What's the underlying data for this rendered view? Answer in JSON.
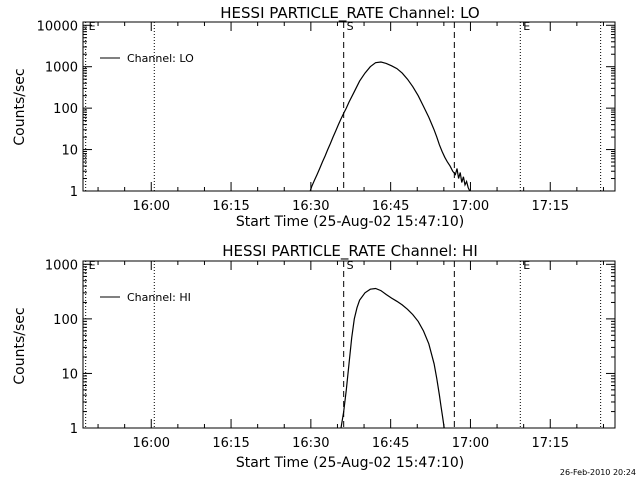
{
  "footer": {
    "timestamp": "26-Feb-2010 20:24"
  },
  "chart_data": [
    {
      "type": "line",
      "title": "HESSI PARTICLE_RATE Channel: LO",
      "xlabel": "Start Time (25-Aug-02 15:47:10)",
      "ylabel": "Counts/sec",
      "y_scale": "log",
      "x_units": "minutes after 15:47:10",
      "xlim": [
        0,
        100
      ],
      "ylim": [
        1,
        12000
      ],
      "x_ticks": [
        {
          "x": 12.83,
          "label": "16:00"
        },
        {
          "x": 27.83,
          "label": "16:15"
        },
        {
          "x": 42.83,
          "label": "16:30"
        },
        {
          "x": 57.83,
          "label": "16:45"
        },
        {
          "x": 72.83,
          "label": "17:00"
        },
        {
          "x": 87.83,
          "label": "17:15"
        }
      ],
      "y_ticks": [
        {
          "y": 1,
          "label": "1"
        },
        {
          "y": 10,
          "label": "10"
        },
        {
          "y": 100,
          "label": "100"
        },
        {
          "y": 1000,
          "label": "1000"
        },
        {
          "y": 10000,
          "label": "10000"
        }
      ],
      "legend": {
        "placement": "top-left",
        "entries": [
          "Channel: LO"
        ]
      },
      "markers": [
        {
          "x": 0.5,
          "style": "dotted",
          "label": "E"
        },
        {
          "x": 13.4,
          "style": "dotted",
          "label": ""
        },
        {
          "x": 49.0,
          "style": "dashed",
          "label": "S"
        },
        {
          "x": 69.8,
          "style": "dashed",
          "label": ""
        },
        {
          "x": 82.2,
          "style": "dotted",
          "label": "E"
        },
        {
          "x": 97.3,
          "style": "dotted",
          "label": ""
        }
      ],
      "series": [
        {
          "name": "Channel: LO",
          "x": [
            42.7,
            43.0,
            43.5,
            44.0,
            44.5,
            45.0,
            45.5,
            46.0,
            46.5,
            47.0,
            47.5,
            48.0,
            48.5,
            49.0,
            49.5,
            50.0,
            51.0,
            52.0,
            53.0,
            54.0,
            55.0,
            56.0,
            57.0,
            58.0,
            59.0,
            60.0,
            61.0,
            62.0,
            63.0,
            64.0,
            65.0,
            66.0,
            66.5,
            67.0,
            67.5,
            68.0,
            68.5,
            69.0,
            69.5,
            70.0,
            70.3,
            70.6,
            70.9,
            71.2,
            71.5,
            71.8,
            72.1,
            72.4,
            72.7
          ],
          "values": [
            1.0,
            1.3,
            1.8,
            2.5,
            3.5,
            5.0,
            7.0,
            10.0,
            14.0,
            20.0,
            28.0,
            40.0,
            55.0,
            75.0,
            100.0,
            140.0,
            250.0,
            450.0,
            700.0,
            1000.0,
            1250.0,
            1300.0,
            1200.0,
            1050.0,
            900.0,
            700.0,
            500.0,
            330.0,
            200.0,
            110.0,
            60.0,
            30.0,
            20.0,
            13.0,
            9.0,
            6.5,
            5.0,
            4.0,
            3.0,
            2.5,
            3.5,
            2.0,
            2.8,
            1.6,
            2.2,
            1.4,
            1.7,
            1.2,
            1.0
          ]
        }
      ]
    },
    {
      "type": "line",
      "title": "HESSI PARTICLE_RATE Channel: HI",
      "xlabel": "Start Time (25-Aug-02 15:47:10)",
      "ylabel": "Counts/sec",
      "y_scale": "log",
      "x_units": "minutes after 15:47:10",
      "xlim": [
        0,
        100
      ],
      "ylim": [
        1,
        1150
      ],
      "x_ticks": [
        {
          "x": 12.83,
          "label": "16:00"
        },
        {
          "x": 27.83,
          "label": "16:15"
        },
        {
          "x": 42.83,
          "label": "16:30"
        },
        {
          "x": 57.83,
          "label": "16:45"
        },
        {
          "x": 72.83,
          "label": "17:00"
        },
        {
          "x": 87.83,
          "label": "17:15"
        }
      ],
      "y_ticks": [
        {
          "y": 1,
          "label": "1"
        },
        {
          "y": 10,
          "label": "10"
        },
        {
          "y": 100,
          "label": "100"
        },
        {
          "y": 1000,
          "label": "1000"
        }
      ],
      "legend": {
        "placement": "top-left",
        "entries": [
          "Channel: HI"
        ]
      },
      "markers": [
        {
          "x": 0.5,
          "style": "dotted",
          "label": "E"
        },
        {
          "x": 13.4,
          "style": "dotted",
          "label": ""
        },
        {
          "x": 49.0,
          "style": "dashed",
          "label": "S"
        },
        {
          "x": 69.8,
          "style": "dashed",
          "label": ""
        },
        {
          "x": 82.2,
          "style": "dotted",
          "label": "E"
        },
        {
          "x": 97.3,
          "style": "dotted",
          "label": ""
        }
      ],
      "series": [
        {
          "name": "Channel: HI",
          "x": [
            48.5,
            49.0,
            49.5,
            50.0,
            50.5,
            51.0,
            51.5,
            52.0,
            53.0,
            54.0,
            55.0,
            56.0,
            57.0,
            58.0,
            59.0,
            60.0,
            61.0,
            62.0,
            63.0,
            64.0,
            65.0,
            66.0,
            66.5,
            67.0,
            67.3,
            67.6,
            67.9
          ],
          "values": [
            1.0,
            2.0,
            5.0,
            15.0,
            45.0,
            100.0,
            160.0,
            220.0,
            300.0,
            350.0,
            360.0,
            330.0,
            280.0,
            240.0,
            210.0,
            180.0,
            150.0,
            120.0,
            90.0,
            60.0,
            35.0,
            15.0,
            8.0,
            4.0,
            2.5,
            1.6,
            1.0
          ]
        }
      ]
    }
  ]
}
